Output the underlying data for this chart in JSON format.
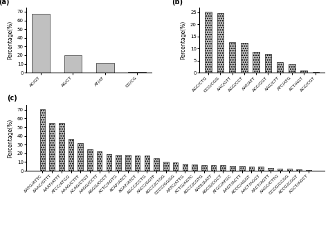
{
  "panel_a": {
    "categories": [
      "AC/GT",
      "AG/CT",
      "AT/AT",
      "CG/CG"
    ],
    "values": [
      67.5,
      20.0,
      11.5,
      1.0
    ],
    "ylabel": "Percentage(%)",
    "ylim": [
      0,
      75
    ],
    "yticks": [
      0,
      10,
      20,
      30,
      40,
      50,
      60,
      70
    ],
    "hatch": ""
  },
  "panel_b": {
    "categories": [
      "AGC/CTG",
      "CCG/CGG",
      "AAC/GTT",
      "AGG/CCT",
      "AAT/ATT",
      "ACC/GGT",
      "AAG/CTT",
      "ATC/ATG",
      "ACT/AGT",
      "ACG/CGT"
    ],
    "values": [
      25.2,
      24.5,
      12.5,
      12.3,
      8.7,
      7.8,
      4.2,
      3.6,
      0.8,
      0.3
    ],
    "ylabel": "Percentage(%)",
    "ylim": [
      0,
      27
    ],
    "yticks": [
      0,
      5,
      10,
      15,
      20,
      25
    ],
    "hatch": "....."
  },
  "panel_c": {
    "categories": [
      "AATG/ATTC",
      "AAAC/GTTT",
      "AAAT/ATTT",
      "ATCC/ATGG",
      "AAAG/CTTT",
      "ACAG/CTGT",
      "AAGG/CCTT",
      "AGGG/CCCT",
      "ACTC/AGTG",
      "ACAF/ATCT",
      "AGAF/ATCT",
      "AGCC/CCTG",
      "AACC/GGTF",
      "AGCC/CTGG",
      "CCCC/GGGG",
      "AATC/ATTG",
      "ACTG/AGTC",
      "AGCC/CGTG",
      "AATE/AATT",
      "AGCG/CGCT",
      "ATGC/AYGC",
      "AAGT/ACTT",
      "ACCC/AGGT",
      "AACT/AGGT",
      "AACT/AGTT",
      "AAGC/CTTG",
      "CCGG/CCGG",
      "ACCG/CGGT",
      "AGCT/AGCT"
    ],
    "values": [
      71.0,
      55.0,
      54.5,
      36.5,
      31.5,
      25.0,
      22.5,
      19.0,
      18.5,
      18.0,
      17.5,
      17.5,
      14.0,
      10.0,
      9.5,
      8.0,
      7.5,
      6.8,
      6.5,
      6.2,
      5.5,
      5.5,
      5.0,
      4.5,
      3.5,
      2.5,
      2.5,
      1.5,
      1.0
    ],
    "ylabel": "Percentage(%)",
    "ylim": [
      0,
      75
    ],
    "yticks": [
      0,
      10,
      20,
      30,
      40,
      50,
      60,
      70
    ],
    "hatch": "....."
  },
  "bar_color": "#c0c0c0",
  "label_fontsize": 4.5,
  "tick_fontsize": 5,
  "axis_label_fontsize": 5.5
}
